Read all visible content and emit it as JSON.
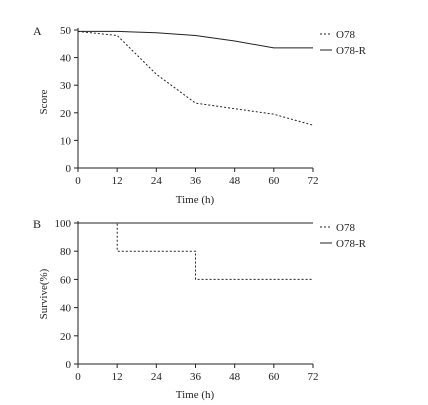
{
  "chart_data": [
    {
      "panel": "A",
      "type": "line",
      "xlabel": "Time (h)",
      "ylabel": "Score",
      "xlim": [
        0,
        72
      ],
      "ylim": [
        0,
        50
      ],
      "xticks": [
        0,
        12,
        24,
        36,
        48,
        60,
        72
      ],
      "yticks": [
        0,
        10,
        20,
        30,
        40,
        50
      ],
      "legend_position": "top-right",
      "grid": false,
      "series": [
        {
          "name": "O78",
          "style": "dotted",
          "x": [
            0,
            12,
            24,
            36,
            48,
            60,
            72
          ],
          "y": [
            49.5,
            48,
            34,
            23.5,
            21.5,
            19.5,
            15.5
          ]
        },
        {
          "name": "O78-R",
          "style": "solid",
          "x": [
            0,
            12,
            24,
            36,
            48,
            60,
            72
          ],
          "y": [
            49.5,
            49.5,
            49,
            48,
            46,
            43.5,
            43.5
          ]
        }
      ]
    },
    {
      "panel": "B",
      "type": "line",
      "step": true,
      "xlabel": "Time (h)",
      "ylabel": "Survive(%)",
      "xlim": [
        0,
        72
      ],
      "ylim": [
        0,
        100
      ],
      "xticks": [
        0,
        12,
        24,
        36,
        48,
        60,
        72
      ],
      "yticks": [
        0,
        20,
        40,
        60,
        80,
        100
      ],
      "legend_position": "top-right",
      "grid": false,
      "series": [
        {
          "name": "O78",
          "style": "dotted",
          "x": [
            0,
            12,
            36,
            72
          ],
          "y": [
            100,
            80,
            60,
            60
          ]
        },
        {
          "name": "O78-R",
          "style": "solid",
          "x": [
            0,
            72
          ],
          "y": [
            100,
            100
          ]
        }
      ]
    }
  ]
}
